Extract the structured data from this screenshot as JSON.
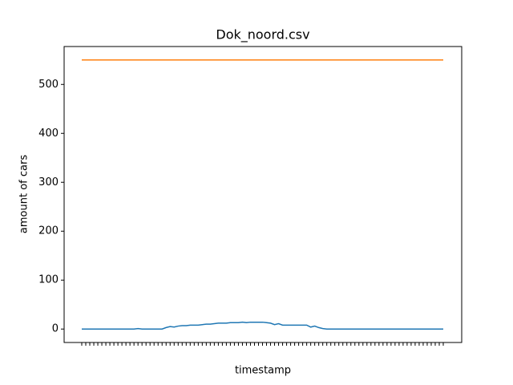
{
  "chart_data": {
    "type": "line",
    "title": "Dok_noord.csv",
    "xlabel": "timestamp",
    "ylabel": "amount of cars",
    "categories": [
      null,
      null,
      null,
      null,
      null,
      null,
      null,
      null,
      null,
      null,
      null,
      null,
      null,
      null,
      null,
      null,
      null,
      null,
      null,
      null,
      null,
      null,
      null,
      null,
      null,
      null,
      null,
      null,
      null,
      null,
      null,
      null,
      null,
      null,
      null,
      null,
      null,
      null,
      null,
      null,
      null,
      null,
      null,
      null,
      null,
      null,
      null,
      null,
      null,
      null,
      null,
      null,
      null,
      null,
      null,
      null,
      null,
      null,
      null,
      null,
      null,
      null,
      null,
      null,
      null,
      null,
      null,
      null,
      null,
      null,
      null,
      null,
      null,
      null,
      null,
      null,
      null,
      null,
      null,
      null,
      null,
      null,
      null,
      null,
      null,
      null,
      null,
      null,
      null,
      null,
      null
    ],
    "series": [
      {
        "color": "#1f77b4",
        "values": [
          0,
          0,
          0,
          0,
          0,
          0,
          0,
          0,
          0,
          0,
          0,
          0,
          0,
          0,
          1,
          0,
          0,
          0,
          0,
          0,
          0,
          3,
          5,
          4,
          6,
          7,
          7,
          8,
          8,
          8,
          9,
          10,
          10,
          11,
          12,
          12,
          12,
          13,
          13,
          13,
          14,
          13,
          14,
          14,
          14,
          14,
          13,
          12,
          9,
          11,
          8,
          8,
          8,
          8,
          8,
          8,
          8,
          4,
          6,
          3,
          1,
          0,
          0,
          0,
          0,
          0,
          0,
          0,
          0,
          0,
          0,
          0,
          0,
          0,
          0,
          0,
          0,
          0,
          0,
          0,
          0,
          0,
          0,
          0,
          0,
          0,
          0,
          0,
          0,
          0,
          0
        ]
      },
      {
        "color": "#ff7f0e",
        "values": [
          550,
          550,
          550,
          550,
          550,
          550,
          550,
          550,
          550,
          550,
          550,
          550,
          550,
          550,
          550,
          550,
          550,
          550,
          550,
          550,
          550,
          550,
          550,
          550,
          550,
          550,
          550,
          550,
          550,
          550,
          550,
          550,
          550,
          550,
          550,
          550,
          550,
          550,
          550,
          550,
          550,
          550,
          550,
          550,
          550,
          550,
          550,
          550,
          550,
          550,
          550,
          550,
          550,
          550,
          550,
          550,
          550,
          550,
          550,
          550,
          550,
          550,
          550,
          550,
          550,
          550,
          550,
          550,
          550,
          550,
          550,
          550,
          550,
          550,
          550,
          550,
          550,
          550,
          550,
          550,
          550,
          550,
          550,
          550,
          550,
          550,
          550,
          550,
          550,
          550,
          550
        ]
      }
    ],
    "ylim": [
      -27.5,
      577.5
    ],
    "yticks": [
      0,
      100,
      200,
      300,
      400,
      500
    ]
  }
}
